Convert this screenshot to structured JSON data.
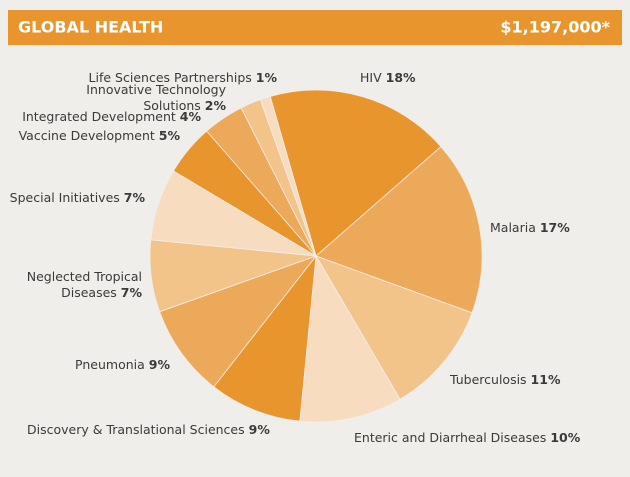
{
  "chart_data": {
    "type": "pie",
    "title": "GLOBAL HEALTH",
    "subtitle": "$1,197,000*",
    "categories": [
      "HIV",
      "Malaria",
      "Tuberculosis",
      "Enteric and Diarrheal Diseases",
      "Discovery & Translational Sciences",
      "Pneumonia",
      "Neglected Tropical Diseases",
      "Special Initiatives",
      "Vaccine Development",
      "Integrated Development",
      "Innovative Technology Solutions",
      "Life Sciences Partnerships"
    ],
    "values": [
      18,
      17,
      11,
      10,
      9,
      9,
      7,
      7,
      5,
      4,
      2,
      1
    ],
    "value_labels": [
      "18%",
      "17%",
      "11%",
      "10%",
      "9%",
      "9%",
      "7%",
      "7%",
      "5%",
      "4%",
      "2%",
      "1%"
    ],
    "colors": [
      "#e8952e",
      "#eda95a",
      "#f2c48a",
      "#f8dcc0",
      "#e8952e",
      "#eda95a",
      "#f2c48a",
      "#f8dcc0",
      "#e8952e",
      "#eda95a",
      "#f2c48a",
      "#f8dcc0"
    ]
  }
}
